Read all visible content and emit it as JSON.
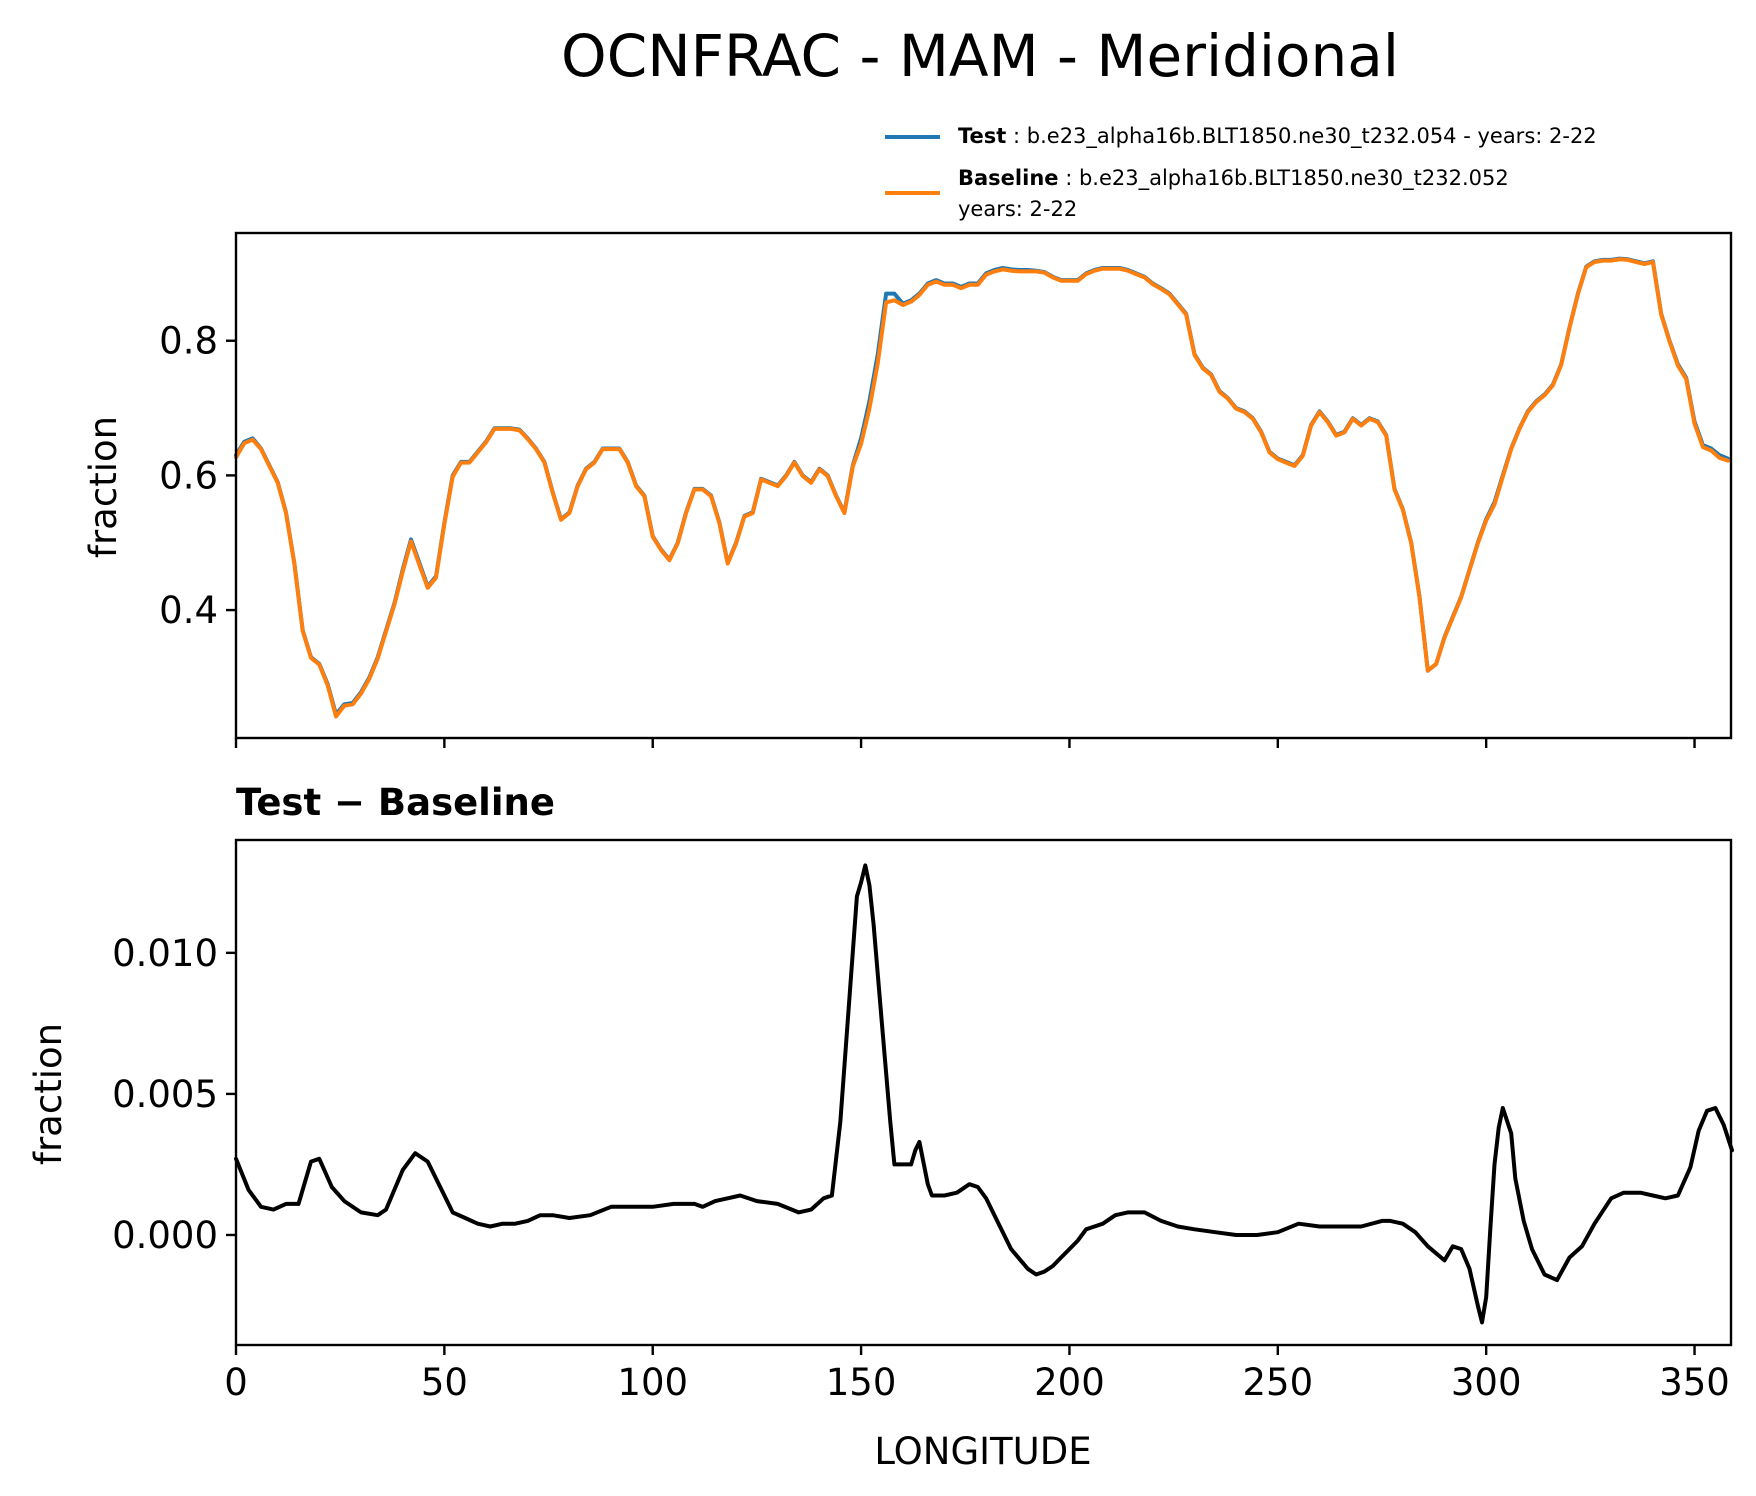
{
  "figure": {
    "title": "OCNFRAC - MAM - Meridional",
    "legend": [
      {
        "series": "Test",
        "name": "Test",
        "desc": ": b.e23_alpha16b.BLT1850.ne30_t232.054 - years: 2-22",
        "desc2": "",
        "color": "#1f77b4"
      },
      {
        "series": "Baseline",
        "name": "Baseline",
        "desc": ": b.e23_alpha16b.BLT1850.ne30_t232.052",
        "desc2": "years: 2-22",
        "color": "#ff7f0e"
      }
    ]
  },
  "chart_data": [
    {
      "type": "line",
      "title": "",
      "xlabel": "",
      "ylabel": "fraction",
      "xlim": [
        0,
        358.75
      ],
      "ylim": [
        0.21,
        0.96
      ],
      "yticks": [
        "0.4",
        "0.6",
        "0.8"
      ],
      "ytick_values": [
        0.4,
        0.6,
        0.8
      ],
      "xtick_values": [
        0,
        50,
        100,
        150,
        200,
        250,
        300,
        350
      ],
      "xticks_labeled": false,
      "grid": false,
      "legend_position": "above-right",
      "series": [
        {
          "name": "Test",
          "color": "#1f77b4",
          "x": [
            0,
            2,
            4,
            6,
            8,
            10,
            12,
            14,
            16,
            18,
            20,
            22,
            24,
            26,
            28,
            30,
            32,
            34,
            36,
            38,
            40,
            42,
            44,
            46,
            48,
            50,
            52,
            54,
            56,
            58,
            60,
            62,
            64,
            66,
            68,
            70,
            72,
            74,
            76,
            78,
            80,
            82,
            84,
            86,
            88,
            90,
            92,
            94,
            96,
            98,
            100,
            102,
            104,
            106,
            108,
            110,
            112,
            114,
            116,
            118,
            120,
            122,
            124,
            126,
            128,
            130,
            132,
            134,
            136,
            138,
            140,
            142,
            144,
            146,
            148,
            150,
            152,
            154,
            156,
            158,
            160,
            162,
            164,
            166,
            168,
            170,
            172,
            174,
            176,
            178,
            180,
            182,
            184,
            186,
            188,
            190,
            192,
            194,
            196,
            198,
            200,
            202,
            204,
            206,
            208,
            210,
            212,
            214,
            216,
            218,
            220,
            222,
            224,
            226,
            228,
            230,
            232,
            234,
            236,
            238,
            240,
            242,
            244,
            246,
            248,
            250,
            252,
            254,
            256,
            258,
            260,
            262,
            264,
            266,
            268,
            270,
            272,
            274,
            276,
            278,
            280,
            282,
            284,
            286,
            288,
            290,
            292,
            294,
            296,
            298,
            300,
            302,
            304,
            306,
            308,
            310,
            312,
            314,
            316,
            318,
            320,
            322,
            324,
            326,
            328,
            330,
            332,
            334,
            336,
            338,
            340,
            342,
            344,
            346,
            348,
            350,
            352,
            354,
            356,
            358
          ],
          "y": [
            0.63,
            0.65,
            0.655,
            0.64,
            0.615,
            0.59,
            0.545,
            0.47,
            0.37,
            0.33,
            0.32,
            0.29,
            0.245,
            0.26,
            0.262,
            0.278,
            0.3,
            0.33,
            0.37,
            0.41,
            0.46,
            0.505,
            0.47,
            0.435,
            0.45,
            0.53,
            0.6,
            0.62,
            0.62,
            0.635,
            0.65,
            0.67,
            0.67,
            0.67,
            0.668,
            0.655,
            0.64,
            0.62,
            0.575,
            0.535,
            0.545,
            0.585,
            0.61,
            0.62,
            0.64,
            0.64,
            0.64,
            0.62,
            0.585,
            0.57,
            0.51,
            0.49,
            0.475,
            0.5,
            0.545,
            0.58,
            0.58,
            0.57,
            0.53,
            0.47,
            0.5,
            0.54,
            0.545,
            0.595,
            0.59,
            0.585,
            0.6,
            0.62,
            0.6,
            0.59,
            0.61,
            0.6,
            0.57,
            0.545,
            0.615,
            0.655,
            0.71,
            0.78,
            0.87,
            0.87,
            0.855,
            0.86,
            0.87,
            0.885,
            0.89,
            0.885,
            0.885,
            0.88,
            0.885,
            0.885,
            0.9,
            0.905,
            0.908,
            0.906,
            0.905,
            0.905,
            0.904,
            0.902,
            0.895,
            0.89,
            0.89,
            0.89,
            0.9,
            0.905,
            0.908,
            0.908,
            0.908,
            0.905,
            0.9,
            0.895,
            0.885,
            0.878,
            0.87,
            0.855,
            0.84,
            0.78,
            0.76,
            0.75,
            0.725,
            0.715,
            0.7,
            0.695,
            0.685,
            0.665,
            0.635,
            0.625,
            0.62,
            0.615,
            0.63,
            0.675,
            0.695,
            0.68,
            0.66,
            0.665,
            0.685,
            0.675,
            0.685,
            0.68,
            0.66,
            0.58,
            0.55,
            0.5,
            0.42,
            0.31,
            0.32,
            0.36,
            0.39,
            0.42,
            0.46,
            0.5,
            0.535,
            0.56,
            0.6,
            0.64,
            0.67,
            0.695,
            0.71,
            0.72,
            0.735,
            0.765,
            0.82,
            0.87,
            0.91,
            0.918,
            0.92,
            0.92,
            0.922,
            0.921,
            0.918,
            0.915,
            0.918,
            0.84,
            0.8,
            0.765,
            0.745,
            0.68,
            0.645,
            0.64,
            0.63,
            0.625
          ]
        },
        {
          "name": "Baseline",
          "color": "#ff7f0e",
          "x": [
            0,
            2,
            4,
            6,
            8,
            10,
            12,
            14,
            16,
            18,
            20,
            22,
            24,
            26,
            28,
            30,
            32,
            34,
            36,
            38,
            40,
            42,
            44,
            46,
            48,
            50,
            52,
            54,
            56,
            58,
            60,
            62,
            64,
            66,
            68,
            70,
            72,
            74,
            76,
            78,
            80,
            82,
            84,
            86,
            88,
            90,
            92,
            94,
            96,
            98,
            100,
            102,
            104,
            106,
            108,
            110,
            112,
            114,
            116,
            118,
            120,
            122,
            124,
            126,
            128,
            130,
            132,
            134,
            136,
            138,
            140,
            142,
            144,
            146,
            148,
            150,
            152,
            154,
            156,
            158,
            160,
            162,
            164,
            166,
            168,
            170,
            172,
            174,
            176,
            178,
            180,
            182,
            184,
            186,
            188,
            190,
            192,
            194,
            196,
            198,
            200,
            202,
            204,
            206,
            208,
            210,
            212,
            214,
            216,
            218,
            220,
            222,
            224,
            226,
            228,
            230,
            232,
            234,
            236,
            238,
            240,
            242,
            244,
            246,
            248,
            250,
            252,
            254,
            256,
            258,
            260,
            262,
            264,
            266,
            268,
            270,
            272,
            274,
            276,
            278,
            280,
            282,
            284,
            286,
            288,
            290,
            292,
            294,
            296,
            298,
            300,
            302,
            304,
            306,
            308,
            310,
            312,
            314,
            316,
            318,
            320,
            322,
            324,
            326,
            328,
            330,
            332,
            334,
            336,
            338,
            340,
            342,
            344,
            346,
            348,
            350,
            352,
            354,
            356,
            358
          ],
          "y": [
            0.627,
            0.648,
            0.653,
            0.639,
            0.614,
            0.589,
            0.544,
            0.469,
            0.369,
            0.329,
            0.319,
            0.288,
            0.242,
            0.258,
            0.26,
            0.276,
            0.298,
            0.328,
            0.368,
            0.408,
            0.457,
            0.502,
            0.467,
            0.433,
            0.448,
            0.528,
            0.598,
            0.619,
            0.619,
            0.634,
            0.649,
            0.669,
            0.669,
            0.669,
            0.667,
            0.654,
            0.639,
            0.619,
            0.574,
            0.534,
            0.544,
            0.584,
            0.609,
            0.619,
            0.639,
            0.639,
            0.639,
            0.619,
            0.584,
            0.569,
            0.509,
            0.489,
            0.474,
            0.499,
            0.544,
            0.579,
            0.579,
            0.569,
            0.529,
            0.469,
            0.499,
            0.539,
            0.544,
            0.594,
            0.589,
            0.584,
            0.599,
            0.619,
            0.599,
            0.589,
            0.609,
            0.599,
            0.569,
            0.544,
            0.613,
            0.647,
            0.699,
            0.767,
            0.857,
            0.86,
            0.853,
            0.858,
            0.868,
            0.883,
            0.888,
            0.883,
            0.883,
            0.878,
            0.883,
            0.883,
            0.898,
            0.903,
            0.906,
            0.904,
            0.903,
            0.903,
            0.903,
            0.901,
            0.894,
            0.889,
            0.889,
            0.889,
            0.899,
            0.904,
            0.907,
            0.907,
            0.907,
            0.904,
            0.899,
            0.894,
            0.884,
            0.877,
            0.869,
            0.854,
            0.839,
            0.779,
            0.759,
            0.749,
            0.724,
            0.714,
            0.699,
            0.694,
            0.684,
            0.664,
            0.634,
            0.624,
            0.619,
            0.614,
            0.629,
            0.674,
            0.694,
            0.679,
            0.659,
            0.664,
            0.684,
            0.674,
            0.684,
            0.679,
            0.659,
            0.579,
            0.549,
            0.499,
            0.419,
            0.31,
            0.32,
            0.359,
            0.389,
            0.419,
            0.459,
            0.499,
            0.533,
            0.557,
            0.598,
            0.639,
            0.669,
            0.694,
            0.709,
            0.719,
            0.734,
            0.764,
            0.819,
            0.869,
            0.909,
            0.917,
            0.919,
            0.919,
            0.921,
            0.92,
            0.917,
            0.914,
            0.917,
            0.839,
            0.799,
            0.763,
            0.743,
            0.677,
            0.642,
            0.637,
            0.626,
            0.622
          ]
        }
      ]
    },
    {
      "type": "line",
      "title": "Test − Baseline",
      "xlabel": "LONGITUDE",
      "ylabel": "fraction",
      "xlim": [
        0,
        358.75
      ],
      "ylim": [
        -0.0039,
        0.014
      ],
      "yticks": [
        "0.000",
        "0.005",
        "0.010"
      ],
      "ytick_values": [
        0.0,
        0.005,
        0.01
      ],
      "xticks": [
        "0",
        "50",
        "100",
        "150",
        "200",
        "250",
        "300",
        "350"
      ],
      "xtick_values": [
        0,
        50,
        100,
        150,
        200,
        250,
        300,
        350
      ],
      "grid": false,
      "series": [
        {
          "name": "Test − Baseline",
          "color": "#000000",
          "x": [
            0,
            3,
            6,
            9,
            12,
            15,
            18,
            20,
            23,
            26,
            30,
            34,
            36,
            40,
            43,
            46,
            49,
            52,
            55,
            58,
            61,
            64,
            67,
            70,
            73,
            76,
            80,
            85,
            90,
            95,
            100,
            105,
            110,
            112,
            115,
            118,
            121,
            125,
            130,
            135,
            138,
            141,
            143,
            145,
            147,
            149,
            150,
            151,
            152,
            153,
            155,
            157,
            158,
            160,
            162,
            163,
            164,
            166,
            167,
            170,
            173,
            176,
            178,
            180,
            183,
            186,
            190,
            192,
            194,
            196,
            198,
            200,
            202,
            204,
            206,
            208,
            211,
            214,
            218,
            222,
            226,
            230,
            235,
            240,
            245,
            250,
            255,
            260,
            265,
            270,
            275,
            277,
            280,
            283,
            286,
            290,
            292,
            294,
            296,
            298,
            299,
            300,
            301,
            302,
            303,
            304,
            306,
            307,
            309,
            311,
            314,
            317,
            320,
            323,
            326,
            330,
            333,
            337,
            340,
            343,
            346,
            349,
            351,
            353,
            355,
            357,
            359
          ],
          "y": [
            0.0027,
            0.0016,
            0.001,
            0.0009,
            0.0011,
            0.0011,
            0.0026,
            0.0027,
            0.0017,
            0.0012,
            0.0008,
            0.0007,
            0.0009,
            0.0023,
            0.0029,
            0.0026,
            0.0017,
            0.0008,
            0.0006,
            0.0004,
            0.0003,
            0.0004,
            0.0004,
            0.0005,
            0.0007,
            0.0007,
            0.0006,
            0.0007,
            0.001,
            0.001,
            0.001,
            0.0011,
            0.0011,
            0.001,
            0.0012,
            0.0013,
            0.0014,
            0.0012,
            0.0011,
            0.0008,
            0.0009,
            0.0013,
            0.0014,
            0.004,
            0.008,
            0.012,
            0.0125,
            0.0131,
            0.0124,
            0.011,
            0.0075,
            0.004,
            0.0025,
            0.0025,
            0.0025,
            0.003,
            0.0033,
            0.0018,
            0.0014,
            0.0014,
            0.0015,
            0.0018,
            0.0017,
            0.0013,
            0.0004,
            -0.0005,
            -0.0012,
            -0.0014,
            -0.0013,
            -0.0011,
            -0.0008,
            -0.0005,
            -0.0002,
            0.0002,
            0.0003,
            0.0004,
            0.0007,
            0.0008,
            0.0008,
            0.0005,
            0.0003,
            0.0002,
            0.0001,
            0.0,
            0.0,
            0.0001,
            0.0004,
            0.0003,
            0.0003,
            0.0003,
            0.0005,
            0.0005,
            0.0004,
            0.0001,
            -0.0004,
            -0.0009,
            -0.0004,
            -0.0005,
            -0.0012,
            -0.0025,
            -0.0031,
            -0.0022,
            0.0002,
            0.0025,
            0.0038,
            0.0045,
            0.0036,
            0.002,
            0.0005,
            -0.0005,
            -0.0014,
            -0.0016,
            -0.0008,
            -0.0004,
            0.0004,
            0.0013,
            0.0015,
            0.0015,
            0.0014,
            0.0013,
            0.0014,
            0.0024,
            0.0037,
            0.0044,
            0.0045,
            0.0039,
            0.003
          ]
        }
      ]
    }
  ]
}
